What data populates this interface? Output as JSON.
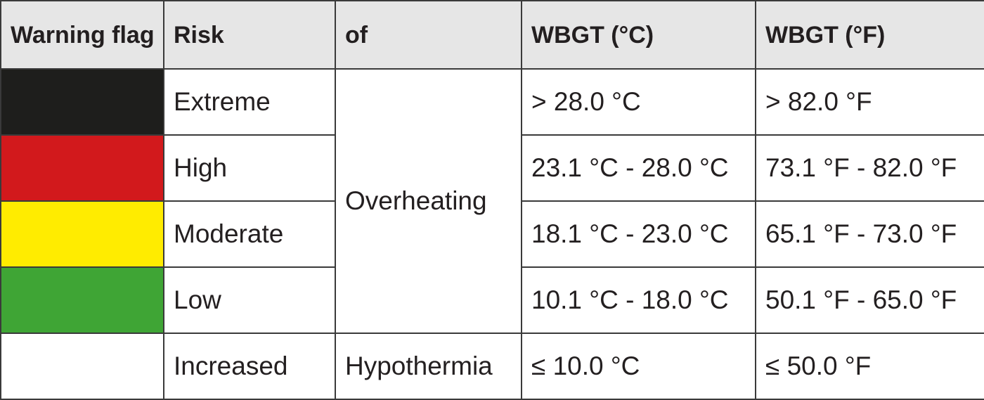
{
  "table": {
    "headers": [
      "Warning flag",
      "Risk",
      "of",
      "WBGT (°C)",
      "WBGT (°F)"
    ],
    "rows": [
      {
        "flag_color": "#1e1e1c",
        "flag_name": "black",
        "risk": "Extreme",
        "celsius": "> 28.0 °C",
        "fahrenheit": "> 82.0 °F"
      },
      {
        "flag_color": "#d2191c",
        "flag_name": "red",
        "risk": "High",
        "celsius": "23.1 °C - 28.0 °C",
        "fahrenheit": "73.1 °F - 82.0 °F"
      },
      {
        "flag_color": "#ffec00",
        "flag_name": "yellow",
        "risk": "Moderate",
        "celsius": "18.1 °C - 23.0 °C",
        "fahrenheit": "65.1 °F - 73.0 °F"
      },
      {
        "flag_color": "#3fa535",
        "flag_name": "green",
        "risk": "Low",
        "celsius": "10.1 °C - 18.0 °C",
        "fahrenheit": "50.1 °F - 65.0 °F"
      },
      {
        "flag_color": "#ffffff",
        "flag_name": "white",
        "risk": "Increased",
        "celsius": "≤ 10.0 °C",
        "fahrenheit": "≤ 50.0 °F"
      }
    ],
    "of_groups": [
      "Overheating",
      "Hypothermia"
    ]
  }
}
